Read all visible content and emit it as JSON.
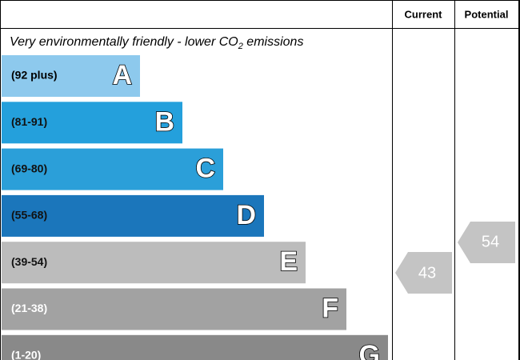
{
  "header": {
    "current": "Current",
    "potential": "Potential"
  },
  "subtitle": {
    "text": "Very environmentally friendly - lower CO",
    "subscript": "2",
    "end": " emissions"
  },
  "bands": [
    {
      "range": "(92 plus)",
      "letter": "A",
      "color": "#8dc9ed",
      "text_color": "#000000"
    },
    {
      "range": "(81-91)",
      "letter": "B",
      "color": "#24a0dc",
      "text_color": "#111111"
    },
    {
      "range": "(69-80)",
      "letter": "C",
      "color": "#2b9fd9",
      "text_color": "#111111"
    },
    {
      "range": "(55-68)",
      "letter": "D",
      "color": "#1b76bb",
      "text_color": "#111111"
    },
    {
      "range": "(39-54)",
      "letter": "E",
      "color": "#bcbcbc",
      "text_color": "#111111"
    },
    {
      "range": "(21-38)",
      "letter": "F",
      "color": "#a2a2a2",
      "text_color": "#ffffff"
    },
    {
      "range": "(1-20)",
      "letter": "G",
      "color": "#898989",
      "text_color": "#ffffff"
    }
  ],
  "current": {
    "value": 43
  },
  "potential": {
    "value": 54
  }
}
